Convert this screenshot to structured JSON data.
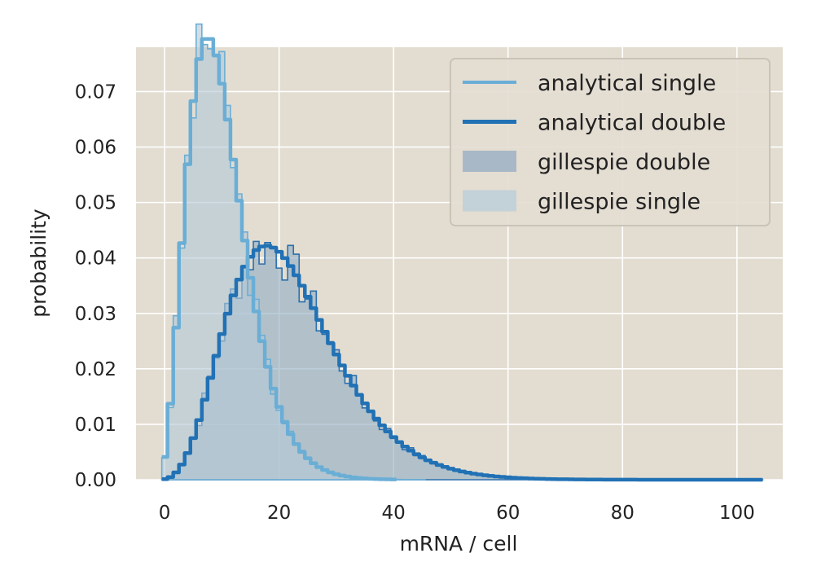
{
  "chart_data": {
    "type": "histogram",
    "xlabel": "mRNA / cell",
    "ylabel": "probability",
    "xlim": [
      -5,
      108
    ],
    "ylim": [
      0,
      0.078
    ],
    "xticks": [
      0,
      20,
      40,
      60,
      80,
      100
    ],
    "yticks": [
      "0.00",
      "0.01",
      "0.02",
      "0.03",
      "0.04",
      "0.05",
      "0.06",
      "0.07"
    ],
    "grid": true,
    "legend_position": "top-right",
    "legend": [
      {
        "label": "analytical single",
        "kind": "line",
        "color": "#6aaed6",
        "width": "thin"
      },
      {
        "label": "analytical double",
        "kind": "line",
        "color": "#2171b5",
        "width": "thick"
      },
      {
        "label": "gillespie double",
        "kind": "patch",
        "color": "#a9b8c7"
      },
      {
        "label": "gillespie single",
        "kind": "patch",
        "color": "#c3d1d9"
      }
    ],
    "series": [
      {
        "name": "analytical single",
        "style": "step-line",
        "color": "#6aaed6",
        "distribution": "negative-binomial",
        "mean": 10,
        "variance": 30,
        "x_max": 40
      },
      {
        "name": "analytical double",
        "style": "step-line",
        "color": "#2171b5",
        "distribution": "negative-binomial",
        "mean": 22,
        "variance": 104,
        "x_max": 104
      },
      {
        "name": "gillespie single",
        "style": "filled-step",
        "fill": "#b5c9d6",
        "edge": "#6aaed6",
        "distribution": "negative-binomial",
        "mean": 10,
        "variance": 30,
        "x_max": 45,
        "noise_amplitude": 0.09
      },
      {
        "name": "gillespie double",
        "style": "filled-step",
        "fill": "#93aec4",
        "edge": "#2b6fad",
        "distribution": "negative-binomial",
        "mean": 22,
        "variance": 104,
        "x_max": 104,
        "noise_amplitude": 0.11
      }
    ],
    "colors": {
      "background": "#e3ddd1",
      "grid": "#ffffff"
    }
  }
}
